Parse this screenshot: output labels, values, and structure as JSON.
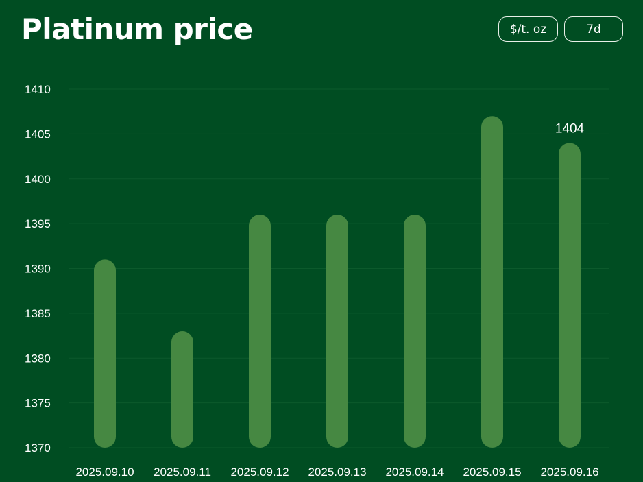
{
  "header": {
    "title": "Platinum price",
    "unit_button": "$/t. oz",
    "range_button": "7d"
  },
  "colors": {
    "background": "#004d22",
    "bar": "#468842",
    "gridline": "#0c5a2c",
    "divider": "#4f8a4f"
  },
  "chart_data": {
    "type": "bar",
    "title": "Platinum price",
    "xlabel": "",
    "ylabel": "",
    "categories": [
      "2025.09.10",
      "2025.09.11",
      "2025.09.12",
      "2025.09.13",
      "2025.09.14",
      "2025.09.15",
      "2025.09.16"
    ],
    "values": [
      1391,
      1383,
      1396,
      1396,
      1396,
      1407,
      1404
    ],
    "ylim": [
      1370,
      1410
    ],
    "yticks": [
      1370,
      1375,
      1380,
      1385,
      1390,
      1395,
      1400,
      1405,
      1410
    ],
    "grid": true,
    "data_labels": [
      {
        "category": "2025.09.16",
        "text": "1404"
      }
    ]
  }
}
